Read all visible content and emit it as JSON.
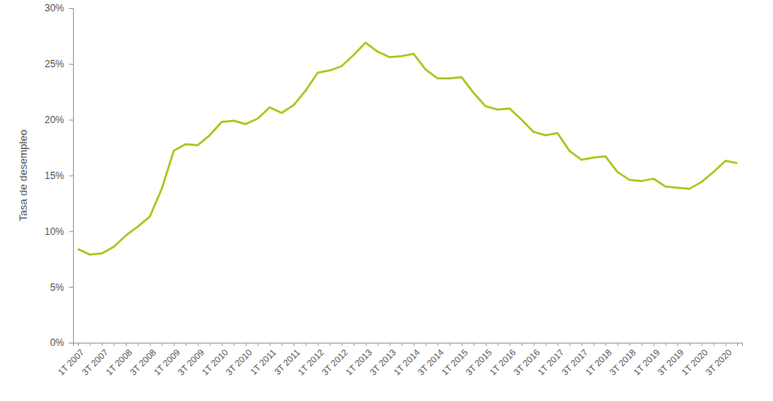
{
  "chart_data": {
    "type": "line",
    "y_label": "Tasa de desempleo",
    "categories": [
      "1T 2007",
      null,
      "3T 2007",
      null,
      "1T 2008",
      null,
      "3T 2008",
      null,
      "1T 2009",
      null,
      "3T 2009",
      null,
      "1T 2010",
      null,
      "3T 2010",
      null,
      "1T 2011",
      null,
      "3T 2011",
      null,
      "1T 2012",
      null,
      "3T 2012",
      null,
      "1T 2013",
      null,
      "3T 2013",
      null,
      "1T 2014",
      null,
      "3T 2014",
      null,
      "1T 2015",
      null,
      "3T 2015",
      null,
      "1T 2016",
      null,
      "3T 2016",
      null,
      "1T 2017",
      null,
      "3T 2017",
      null,
      "1T 2018",
      null,
      "3T 2018",
      null,
      "1T 2019",
      null,
      "3T 2019",
      null,
      "1T 2020",
      null,
      "3T 2020",
      null
    ],
    "values": [
      8.4,
      7.9,
      8.0,
      8.6,
      9.6,
      10.4,
      11.3,
      13.8,
      17.2,
      17.8,
      17.7,
      18.6,
      19.8,
      19.9,
      19.6,
      20.1,
      21.1,
      20.6,
      21.3,
      22.6,
      24.2,
      24.4,
      24.8,
      25.8,
      26.9,
      26.1,
      25.6,
      25.7,
      25.9,
      24.5,
      23.7,
      23.7,
      23.8,
      22.4,
      21.2,
      20.9,
      21.0,
      20.0,
      18.9,
      18.6,
      18.8,
      17.2,
      16.4,
      16.6,
      16.7,
      15.3,
      14.6,
      14.5,
      14.7,
      14.0,
      13.9,
      13.8,
      14.4,
      15.3,
      16.3,
      16.1
    ],
    "color": "#a5c81b",
    "ylim": [
      0,
      30
    ],
    "yticks": [
      {
        "value": 0,
        "label": "0%"
      },
      {
        "value": 5,
        "label": "5%"
      },
      {
        "value": 10,
        "label": "10%"
      },
      {
        "value": 15,
        "label": "15%"
      },
      {
        "value": 20,
        "label": "20%"
      },
      {
        "value": 25,
        "label": "25%"
      },
      {
        "value": 30,
        "label": "30%"
      }
    ],
    "grid": false
  }
}
